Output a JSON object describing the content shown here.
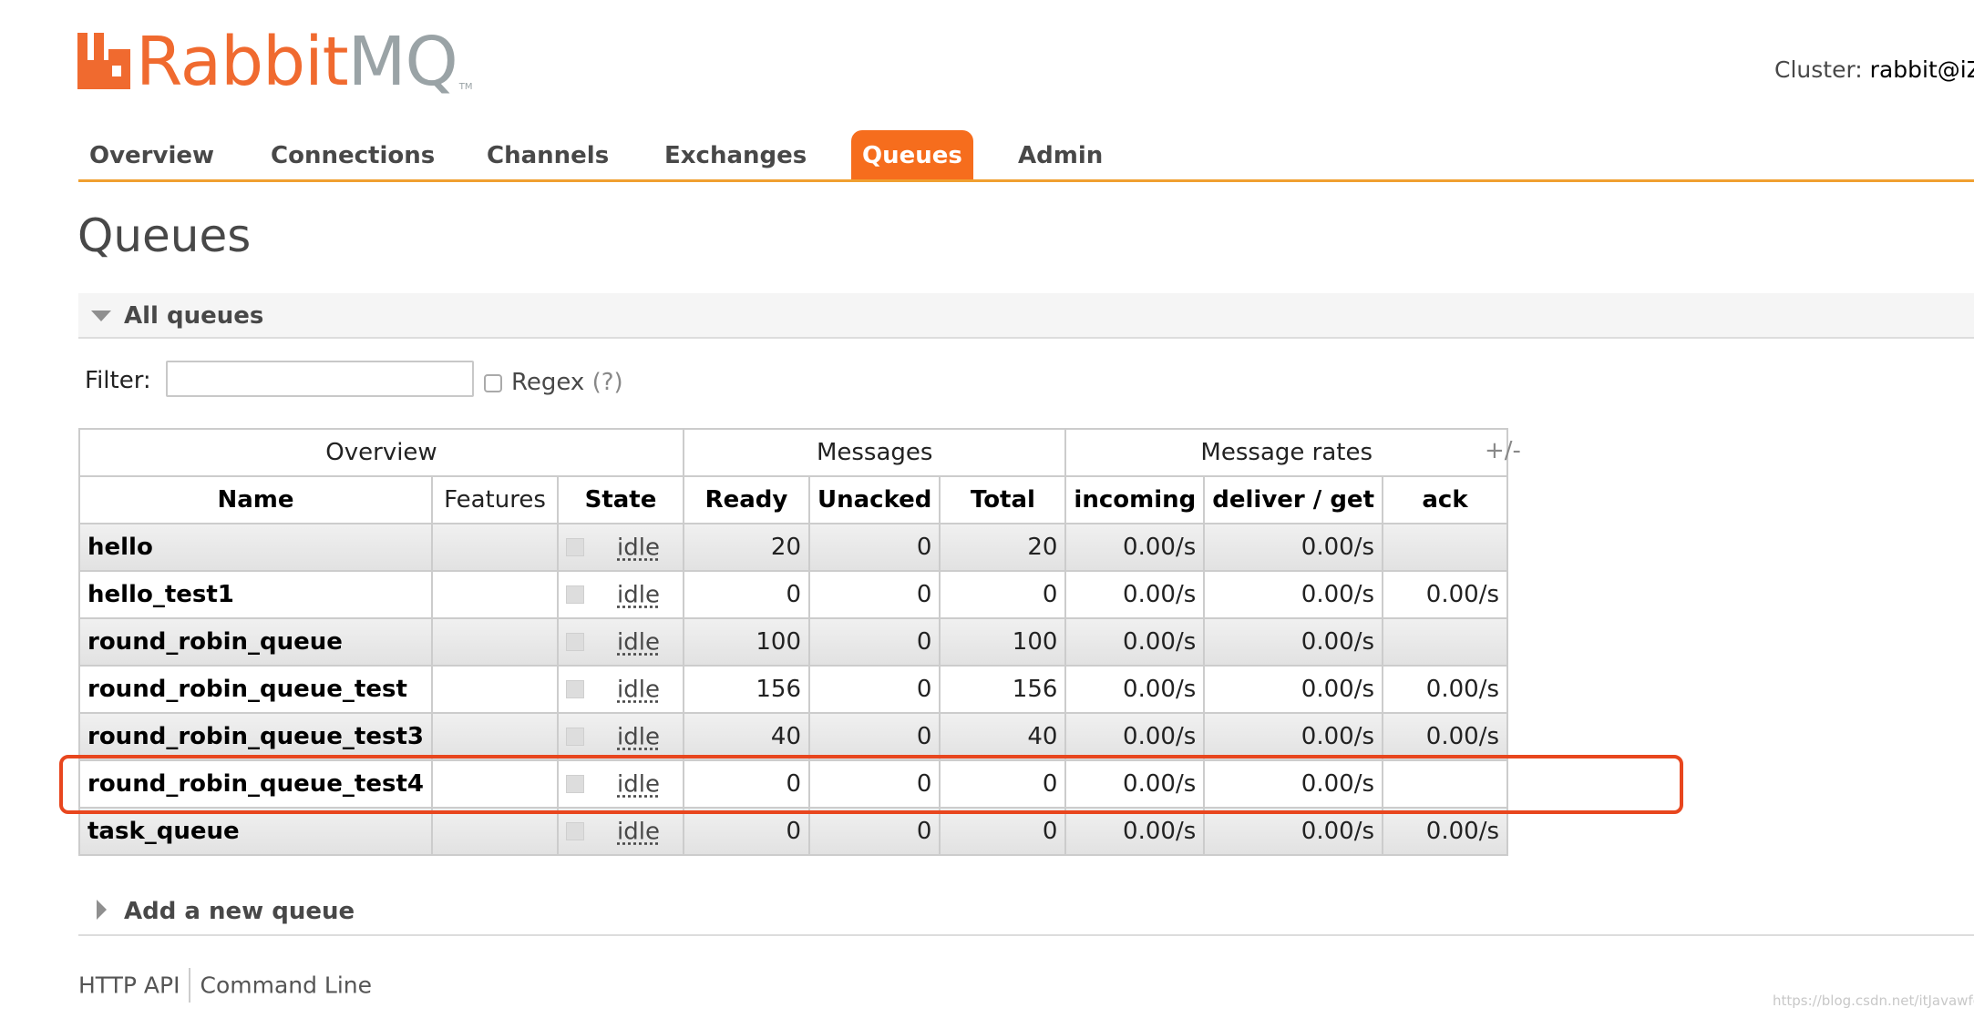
{
  "logo": {
    "part1": "Rabbit",
    "part2": "MQ",
    "tm": "TM"
  },
  "cluster": {
    "label": "Cluster:",
    "name": "rabbit@iZ"
  },
  "tabs": [
    {
      "label": "Overview"
    },
    {
      "label": "Connections"
    },
    {
      "label": "Channels"
    },
    {
      "label": "Exchanges"
    },
    {
      "label": "Queues"
    },
    {
      "label": "Admin"
    }
  ],
  "page": {
    "title": "Queues"
  },
  "all_queues": {
    "title": "All queues"
  },
  "filter": {
    "label": "Filter:",
    "value": "",
    "regex_label": "Regex",
    "regex_help": "(?)"
  },
  "table": {
    "groups": [
      "Overview",
      "Messages",
      "Message rates"
    ],
    "columns": [
      "Name",
      "Features",
      "State",
      "Ready",
      "Unacked",
      "Total",
      "incoming",
      "deliver / get",
      "ack"
    ],
    "toggle": "+/-",
    "rows": [
      {
        "name": "hello",
        "features": "",
        "state": "idle",
        "ready": "20",
        "unacked": "0",
        "total": "20",
        "incoming": "0.00/s",
        "deliver": "0.00/s",
        "ack": ""
      },
      {
        "name": "hello_test1",
        "features": "",
        "state": "idle",
        "ready": "0",
        "unacked": "0",
        "total": "0",
        "incoming": "0.00/s",
        "deliver": "0.00/s",
        "ack": "0.00/s"
      },
      {
        "name": "round_robin_queue",
        "features": "",
        "state": "idle",
        "ready": "100",
        "unacked": "0",
        "total": "100",
        "incoming": "0.00/s",
        "deliver": "0.00/s",
        "ack": ""
      },
      {
        "name": "round_robin_queue_test",
        "features": "",
        "state": "idle",
        "ready": "156",
        "unacked": "0",
        "total": "156",
        "incoming": "0.00/s",
        "deliver": "0.00/s",
        "ack": "0.00/s"
      },
      {
        "name": "round_robin_queue_test3",
        "features": "",
        "state": "idle",
        "ready": "40",
        "unacked": "0",
        "total": "40",
        "incoming": "0.00/s",
        "deliver": "0.00/s",
        "ack": "0.00/s"
      },
      {
        "name": "round_robin_queue_test4",
        "features": "",
        "state": "idle",
        "ready": "0",
        "unacked": "0",
        "total": "0",
        "incoming": "0.00/s",
        "deliver": "0.00/s",
        "ack": ""
      },
      {
        "name": "task_queue",
        "features": "",
        "state": "idle",
        "ready": "0",
        "unacked": "0",
        "total": "0",
        "incoming": "0.00/s",
        "deliver": "0.00/s",
        "ack": "0.00/s"
      }
    ]
  },
  "add_queue": {
    "title": "Add a new queue"
  },
  "footer": {
    "links": [
      "HTTP API",
      "Command Line"
    ]
  },
  "watermark": "https://blog.csdn.net/itJavawfc",
  "colors": {
    "accent": "#f66d1d",
    "tab_underline": "#f0a030",
    "logo_orange": "#f06a2f",
    "logo_gray": "#9aa3a6",
    "highlight": "#e8461e"
  }
}
